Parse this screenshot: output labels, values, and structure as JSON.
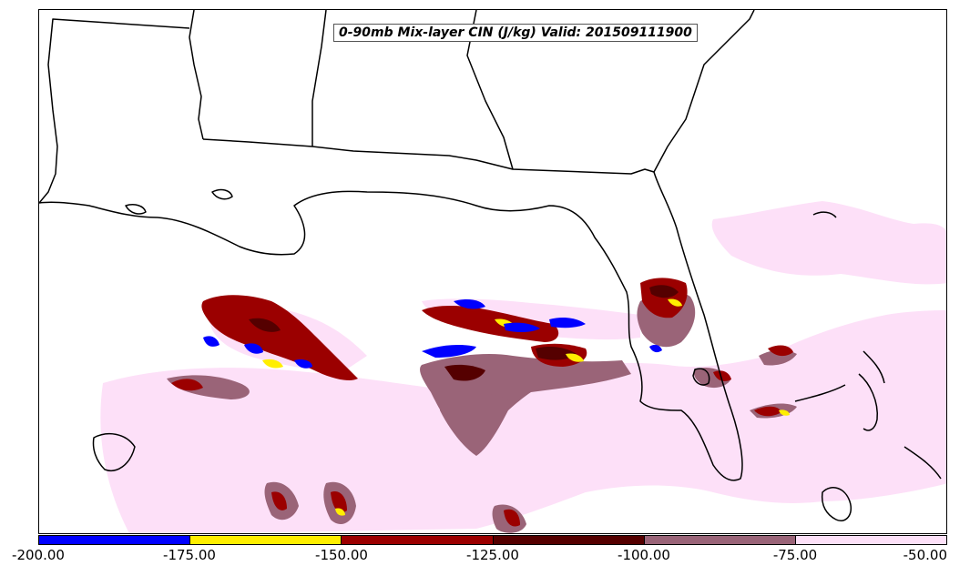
{
  "title": "0-90mb Mix-layer CIN (J/kg) Valid: 201509111900",
  "colors": {
    "below_-175": "#0000ff",
    "-175_to_-150": "#ffee00",
    "-150_to_-125": "#9b0000",
    "-125_to_-100": "#550000",
    "-100_to_-75": "#9a6478",
    "-75_to_-50": "#fde0f8",
    "coastline": "#000000"
  },
  "colorbar": {
    "ticks": [
      "-200.00",
      "-175.00",
      "-150.00",
      "-125.00",
      "-100.00",
      "-75.00",
      "-50.00"
    ],
    "segments": [
      "#0000ff",
      "#ffee00",
      "#9b0000",
      "#550000",
      "#9a6478",
      "#fde0f8"
    ]
  }
}
